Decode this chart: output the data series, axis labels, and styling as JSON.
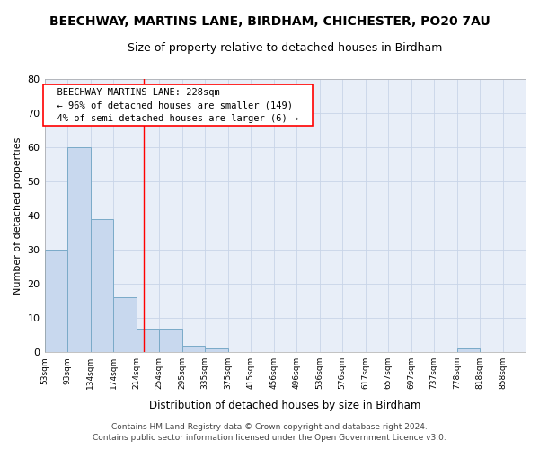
{
  "title_line1": "BEECHWAY, MARTINS LANE, BIRDHAM, CHICHESTER, PO20 7AU",
  "title_line2": "Size of property relative to detached houses in Birdham",
  "xlabel": "Distribution of detached houses by size in Birdham",
  "ylabel": "Number of detached properties",
  "bin_labels": [
    "53sqm",
    "93sqm",
    "134sqm",
    "174sqm",
    "214sqm",
    "254sqm",
    "295sqm",
    "335sqm",
    "375sqm",
    "415sqm",
    "456sqm",
    "496sqm",
    "536sqm",
    "576sqm",
    "617sqm",
    "657sqm",
    "697sqm",
    "737sqm",
    "778sqm",
    "818sqm",
    "858sqm"
  ],
  "bin_edges": [
    53,
    93,
    134,
    174,
    214,
    254,
    295,
    335,
    375,
    415,
    456,
    496,
    536,
    576,
    617,
    657,
    697,
    737,
    778,
    818,
    858
  ],
  "bar_heights": [
    30,
    60,
    39,
    16,
    7,
    7,
    2,
    1,
    0,
    0,
    0,
    0,
    0,
    0,
    0,
    0,
    0,
    0,
    1,
    0,
    0
  ],
  "bar_color": "#c8d8ee",
  "bar_edge_color": "#7aaac8",
  "grid_color": "#c8d4e8",
  "background_color": "#e8eef8",
  "fig_background_color": "#ffffff",
  "red_line_x": 228,
  "ylim": [
    0,
    80
  ],
  "yticks": [
    0,
    10,
    20,
    30,
    40,
    50,
    60,
    70,
    80
  ],
  "annotation_title": "BEECHWAY MARTINS LANE: 228sqm",
  "annotation_line2": "← 96% of detached houses are smaller (149)",
  "annotation_line3": "4% of semi-detached houses are larger (6) →",
  "footer_line1": "Contains HM Land Registry data © Crown copyright and database right 2024.",
  "footer_line2": "Contains public sector information licensed under the Open Government Licence v3.0."
}
